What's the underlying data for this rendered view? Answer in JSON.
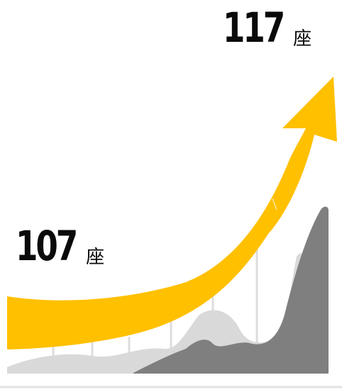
{
  "start_stat": {
    "value": "107",
    "unit": "座"
  },
  "end_stat": {
    "value": "117",
    "unit": "座"
  },
  "colors": {
    "arrow": "#FFC000",
    "wave_light": "#D9D9D9",
    "wave_dark": "#7F7F7F",
    "lines": "#DCDCDC",
    "text": "#0A0A0A"
  }
}
